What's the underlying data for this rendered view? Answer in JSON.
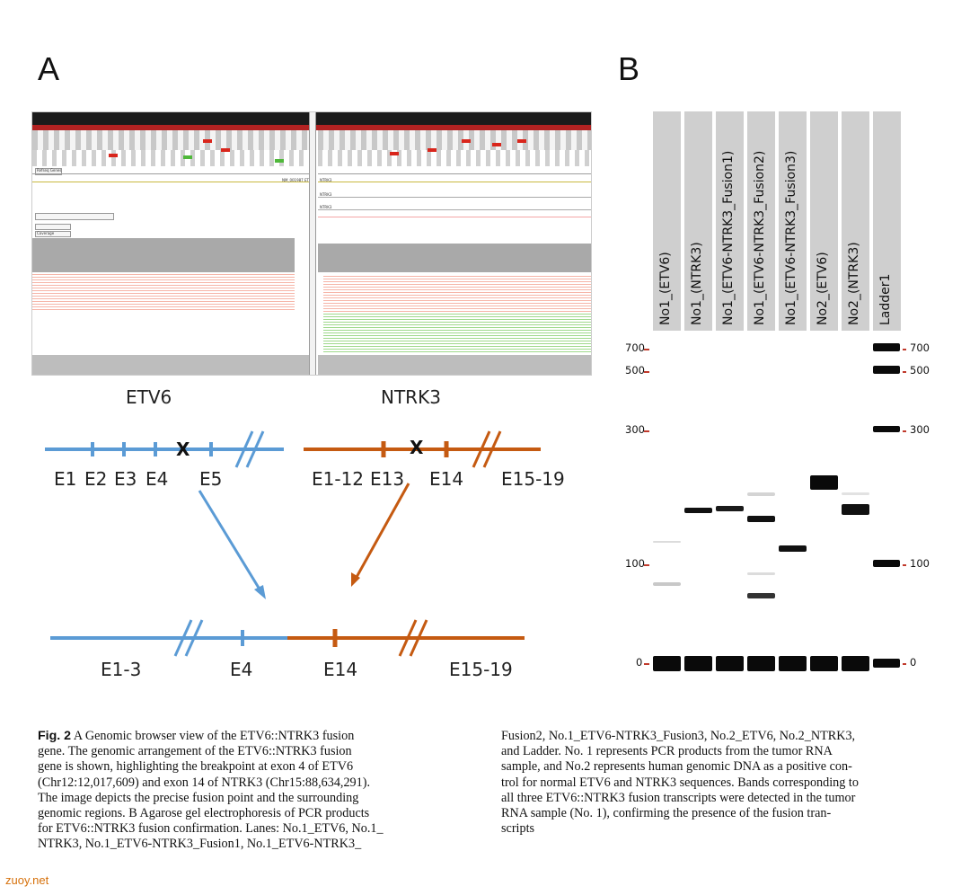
{
  "panels": {
    "a": "A",
    "b": "B"
  },
  "browser": {
    "genes": {
      "left": "ETV6",
      "right": "NTRK3"
    },
    "tiny_labels": [
      "Refseq Genes",
      "NM_001987 ETV6",
      "NTRK3",
      "NTRK3",
      "NTRK3",
      "Coverage"
    ]
  },
  "diagram": {
    "etv6_exons": [
      "E1",
      "E2",
      "E3",
      "E4",
      "E5"
    ],
    "ntrk3_exons": [
      "E1-12",
      "E13",
      "E14",
      "E15-19"
    ],
    "breakpoint_mark": "X",
    "fusion_labels": [
      "E1-3",
      "E4",
      "E14",
      "E15-19"
    ],
    "colors": {
      "etv6": "#5b9bd5",
      "ntrk3": "#c55a11"
    }
  },
  "gel": {
    "lanes": [
      "No1_(ETV6)",
      "No1_(NTRK3)",
      "No1_(ETV6-NTRK3_Fusion1)",
      "No1_(ETV6-NTRK3_Fusion2)",
      "No1_(ETV6-NTRK3_Fusion3)",
      "No2_(ETV6)",
      "No2_(NTRK3)",
      "Ladder1"
    ],
    "size_markers": [
      "700",
      "500",
      "300",
      "100",
      "0"
    ],
    "ladder_labels": [
      "700",
      "500",
      "300",
      "100",
      "0"
    ]
  },
  "caption": {
    "fig_label": "Fig. 2",
    "left_column": [
      "A Genomic browser view of the ETV6::NTRK3 fusion",
      "gene. The genomic arrangement of the ETV6::NTRK3 fusion",
      "gene is shown, highlighting the breakpoint at exon 4 of ETV6",
      "(Chr12:12,017,609) and exon 14 of NTRK3 (Chr15:88,634,291).",
      "The image depicts the precise fusion point and the surrounding",
      "genomic regions. B Agarose gel electrophoresis of PCR products",
      "for ETV6::NTRK3 fusion confirmation. Lanes: No.1_ETV6, No.1_",
      "NTRK3, No.1_ETV6-NTRK3_Fusion1, No.1_ETV6-NTRK3_"
    ],
    "right_column": [
      "Fusion2, No.1_ETV6-NTRK3_Fusion3, No.2_ETV6, No.2_NTRK3,",
      "and Ladder. No. 1 represents PCR products from the tumor RNA",
      "sample, and No.2 represents human genomic DNA as a positive con-",
      "trol for normal ETV6 and NTRK3 sequences. Bands corresponding to",
      "all three ETV6::NTRK3 fusion transcripts were detected in the tumor",
      "RNA sample (No. 1), confirming the presence of the fusion tran-",
      "scripts"
    ]
  },
  "watermark": "zuoy.net"
}
